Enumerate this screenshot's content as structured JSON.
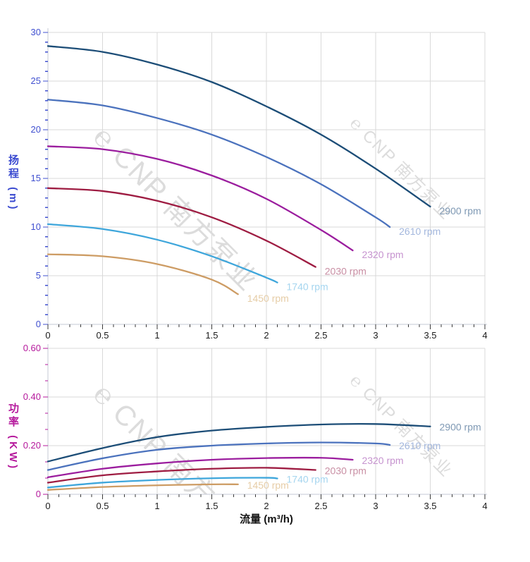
{
  "page": {
    "background": "#ffffff"
  },
  "watermark": {
    "logo": "℮",
    "text": "CNP 南方泵业",
    "color": "#dcdcdc"
  },
  "chart_data": [
    {
      "id": "head-curves",
      "type": "line",
      "title": "",
      "xlabel": "",
      "ylabel": "扬程 (m)",
      "x_axis": {
        "label": "",
        "range": [
          0,
          4
        ],
        "tick_values": [
          0,
          0.5,
          1,
          1.5,
          2,
          2.5,
          3,
          3.5,
          4
        ],
        "tick_labels": [
          "0",
          "0.5",
          "1",
          "1.5",
          "2",
          "2.5",
          "3",
          "3.5",
          "4"
        ],
        "minor_step": 0.1,
        "color": "#1c1c1c",
        "grid": true
      },
      "y_axis": {
        "label": "扬程 (m)",
        "range": [
          0,
          30
        ],
        "tick_values": [
          0,
          5,
          10,
          15,
          20,
          25,
          30
        ],
        "tick_labels": [
          "0",
          "5",
          "10",
          "15",
          "20",
          "25",
          "30"
        ],
        "minor_step": 1,
        "color": "#4050d0",
        "grid": true
      },
      "series": [
        {
          "name": "2900 rpm",
          "color": "#1c4d77",
          "label_color": "#7f99b4",
          "points": [
            [
              0,
              28.6
            ],
            [
              0.5,
              28.0
            ],
            [
              1,
              26.7
            ],
            [
              1.5,
              24.9
            ],
            [
              2,
              22.4
            ],
            [
              2.5,
              19.5
            ],
            [
              3,
              16.0
            ],
            [
              3.5,
              12.1
            ]
          ]
        },
        {
          "name": "2610 rpm",
          "color": "#4b72bd",
          "label_color": "#a3b7dd",
          "points": [
            [
              0,
              23.1
            ],
            [
              0.5,
              22.5
            ],
            [
              1,
              21.2
            ],
            [
              1.5,
              19.5
            ],
            [
              2,
              17.2
            ],
            [
              2.5,
              14.4
            ],
            [
              3,
              11.0
            ],
            [
              3.13,
              10.0
            ]
          ]
        },
        {
          "name": "2320 rpm",
          "color": "#9b1d9e",
          "label_color": "#c693cf",
          "points": [
            [
              0,
              18.3
            ],
            [
              0.5,
              18.0
            ],
            [
              1,
              17.0
            ],
            [
              1.5,
              15.3
            ],
            [
              2,
              12.9
            ],
            [
              2.5,
              9.7
            ],
            [
              2.79,
              7.6
            ]
          ]
        },
        {
          "name": "2030 rpm",
          "color": "#9e1c42",
          "label_color": "#c98fa4",
          "points": [
            [
              0,
              14.0
            ],
            [
              0.5,
              13.7
            ],
            [
              1,
              12.7
            ],
            [
              1.5,
              11.0
            ],
            [
              2,
              8.6
            ],
            [
              2.45,
              5.9
            ]
          ]
        },
        {
          "name": "1740 rpm",
          "color": "#3ea6db",
          "label_color": "#a5d5ef",
          "points": [
            [
              0,
              10.3
            ],
            [
              0.5,
              9.8
            ],
            [
              1,
              8.7
            ],
            [
              1.5,
              7.0
            ],
            [
              2,
              4.8
            ],
            [
              2.1,
              4.3
            ]
          ]
        },
        {
          "name": "1450 rpm",
          "color": "#cd9c64",
          "label_color": "#e6cda7",
          "points": [
            [
              0,
              7.2
            ],
            [
              0.5,
              7.0
            ],
            [
              1,
              6.2
            ],
            [
              1.5,
              4.6
            ],
            [
              1.74,
              3.1
            ]
          ]
        }
      ]
    },
    {
      "id": "power-curves",
      "type": "line",
      "title": "",
      "xlabel": "流量 (m³/h)",
      "ylabel": "功率 (KW)",
      "x_axis": {
        "label": "流量 (m³/h)",
        "range": [
          0,
          4
        ],
        "tick_values": [
          0,
          0.5,
          1,
          1.5,
          2,
          2.5,
          3,
          3.5,
          4
        ],
        "tick_labels": [
          "0",
          "0.5",
          "1",
          "1.5",
          "2",
          "2.5",
          "3",
          "3.5",
          "4"
        ],
        "minor_step": 0.1,
        "color": "#1c1c1c",
        "grid": true
      },
      "y_axis": {
        "label": "功率 (KW)",
        "range": [
          0,
          0.6
        ],
        "tick_values": [
          0,
          0.2,
          0.4,
          0.6
        ],
        "tick_labels": [
          "0",
          "0.20",
          "0.40",
          "0.60"
        ],
        "minor_step": 0.0666667,
        "color": "#b5199c",
        "grid": true
      },
      "series": [
        {
          "name": "2900 rpm",
          "color": "#1c4d77",
          "label_color": "#7f99b4",
          "points": [
            [
              0,
              0.135
            ],
            [
              0.5,
              0.19
            ],
            [
              1,
              0.235
            ],
            [
              1.5,
              0.262
            ],
            [
              2,
              0.277
            ],
            [
              2.5,
              0.287
            ],
            [
              3,
              0.289
            ],
            [
              3.5,
              0.279
            ]
          ]
        },
        {
          "name": "2610 rpm",
          "color": "#4b72bd",
          "label_color": "#a3b7dd",
          "points": [
            [
              0,
              0.1
            ],
            [
              0.5,
              0.148
            ],
            [
              1,
              0.183
            ],
            [
              1.5,
              0.2
            ],
            [
              2,
              0.209
            ],
            [
              2.5,
              0.213
            ],
            [
              3,
              0.209
            ],
            [
              3.13,
              0.203
            ]
          ]
        },
        {
          "name": "2320 rpm",
          "color": "#9b1d9e",
          "label_color": "#c693cf",
          "points": [
            [
              0,
              0.07
            ],
            [
              0.5,
              0.105
            ],
            [
              1,
              0.127
            ],
            [
              1.5,
              0.142
            ],
            [
              2,
              0.149
            ],
            [
              2.5,
              0.15
            ],
            [
              2.79,
              0.142
            ]
          ]
        },
        {
          "name": "2030 rpm",
          "color": "#9e1c42",
          "label_color": "#c98fa4",
          "points": [
            [
              0,
              0.048
            ],
            [
              0.5,
              0.078
            ],
            [
              1,
              0.094
            ],
            [
              1.5,
              0.105
            ],
            [
              2,
              0.109
            ],
            [
              2.45,
              0.1
            ]
          ]
        },
        {
          "name": "1740 rpm",
          "color": "#3ea6db",
          "label_color": "#a5d5ef",
          "points": [
            [
              0,
              0.028
            ],
            [
              0.5,
              0.048
            ],
            [
              1,
              0.059
            ],
            [
              1.5,
              0.066
            ],
            [
              2,
              0.068
            ],
            [
              2.1,
              0.065
            ]
          ]
        },
        {
          "name": "1450 rpm",
          "color": "#cd9c64",
          "label_color": "#e6cda7",
          "points": [
            [
              0,
              0.018
            ],
            [
              0.5,
              0.03
            ],
            [
              1,
              0.037
            ],
            [
              1.5,
              0.041
            ],
            [
              1.74,
              0.041
            ]
          ]
        }
      ]
    }
  ],
  "style": {
    "grid_color": "#d9d9d9",
    "axis_line_color": "#c4c9d6",
    "x_tick_color": "#3a3a3a"
  }
}
